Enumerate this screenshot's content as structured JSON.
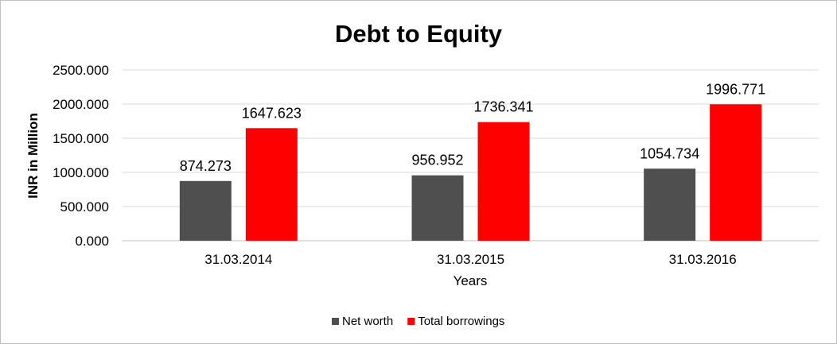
{
  "chart_data": {
    "type": "bar",
    "title": "Debt to Equity",
    "xlabel": "Years",
    "ylabel": "INR in Million",
    "categories": [
      "31.03.2014",
      "31.03.2015",
      "31.03.2016"
    ],
    "series": [
      {
        "name": "Net worth",
        "values": [
          874.273,
          956.952,
          1054.734
        ],
        "labels": [
          "874.273",
          "956.952",
          "1054.734"
        ],
        "color": "#4f4f4f"
      },
      {
        "name": "Total borrowings",
        "values": [
          1647.623,
          1736.341,
          1996.771
        ],
        "labels": [
          "1647.623",
          "1736.341",
          "1996.771"
        ],
        "color": "#ff0000"
      }
    ],
    "ylim": [
      0,
      2500
    ],
    "yticks": [
      "0.000",
      "500.000",
      "1000.000",
      "1500.000",
      "2000.000",
      "2500.000"
    ],
    "grid": true,
    "legend": "bottom"
  }
}
